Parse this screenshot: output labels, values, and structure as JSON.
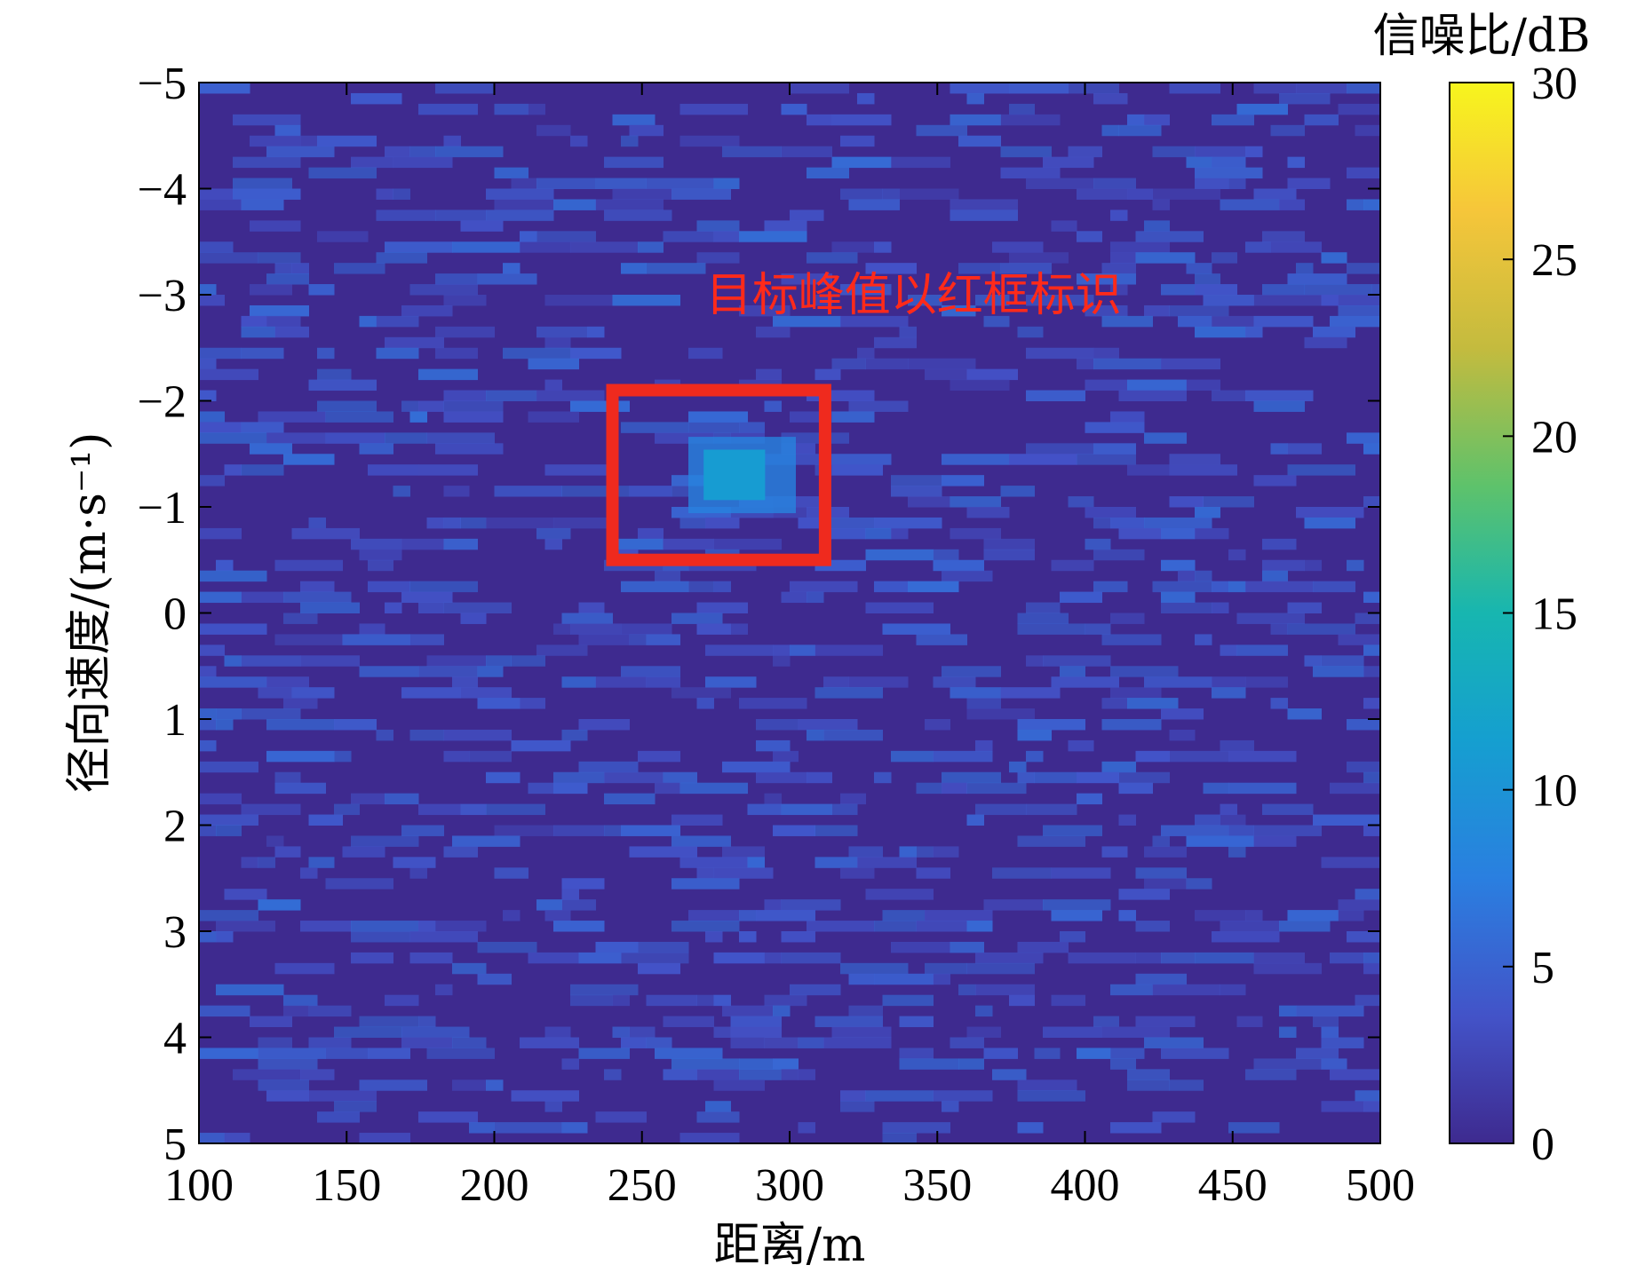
{
  "chart_data": {
    "type": "heatmap",
    "title": "",
    "xlabel": "距离/m",
    "ylabel": "径向速度/(m·s⁻¹)",
    "colorbar_label": "信噪比/dB",
    "xlim": [
      100,
      500
    ],
    "ylim": [
      -5,
      5
    ],
    "y_direction": "reversed",
    "clim": [
      0,
      30
    ],
    "colormap": "parula",
    "x_ticks": [
      100,
      150,
      200,
      250,
      300,
      350,
      400,
      450,
      500
    ],
    "y_ticks": [
      -5,
      -4,
      -3,
      -2,
      -1,
      0,
      1,
      2,
      3,
      4,
      5
    ],
    "colorbar_ticks": [
      0,
      5,
      10,
      15,
      20,
      25,
      30
    ],
    "background_snr": 1,
    "noise_max_snr": 6,
    "peak": {
      "x": 280,
      "y": -1.3,
      "snr": 11
    },
    "annotation": {
      "text": "目标峰值以红框标识",
      "x": 342,
      "y": -3,
      "box": {
        "x_range": [
          240,
          312
        ],
        "y_range": [
          -2.1,
          -0.5
        ]
      }
    },
    "grid": false,
    "colors": {
      "box": "#ef2a1e",
      "annotation": "#ff2a1a"
    }
  }
}
